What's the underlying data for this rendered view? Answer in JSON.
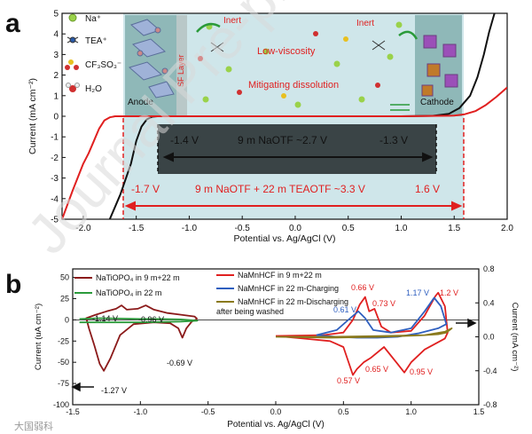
{
  "panel_labels": {
    "a": "a",
    "b": "b"
  },
  "watermark": "Journal Pre-proof",
  "source_tag": "大国弱科",
  "colors": {
    "black": "#111111",
    "red": "#e02020",
    "blue": "#2f5fbf",
    "green": "#2a9a3a",
    "olive": "#8a7a1e",
    "darkred": "#8b1a1a",
    "window_light": "#cfe6ea",
    "window_dark": "#3a4446",
    "electrode": "#8fb8b8"
  },
  "panel_a": {
    "legend": [
      "Na⁺",
      "TEA⁺",
      "CF₃SO₃⁻",
      "H₂O"
    ],
    "labels": {
      "anode": "Anode",
      "sf_layer": "SF Layer",
      "inert_left": "Inert",
      "inert_right": "Inert",
      "low_viscosity": "Low-viscosity",
      "mitigating": "Mitigating dissolution",
      "cathode": "Cathode",
      "black_left": "-1.4 V",
      "black_mid": "9 m NaOTF ~2.7 V",
      "black_right": "-1.3 V",
      "red_left": "-1.7 V",
      "red_mid": "9 m NaOTF + 22 m TEAOTF  ~3.3 V",
      "red_right": "1.6 V"
    }
  },
  "panel_b": {
    "legend_left": [
      "NaTiOPO₄ in 9 m+22 m",
      "NaTiOPO₄ in 22 m"
    ],
    "legend_right": [
      "NaMnHCF in 9 m+22 m",
      "NaMnHCF in 22 m-Charging",
      "NaMnHCF in 22 m-Discharging",
      "after being washed"
    ],
    "annotations_dark": [
      "-1.14 V",
      "-0.96 V",
      "-0.69 V",
      "-1.27 V"
    ],
    "annotations_red": [
      "0.66 V",
      "0.73 V",
      "1.2 V",
      "0.57 V",
      "0.65 V",
      "0.95 V"
    ],
    "annotations_blue": [
      "0.61 V",
      "1.17 V"
    ]
  },
  "chart_data": [
    {
      "type": "line",
      "panel": "a",
      "xlabel": "Potential vs. Ag/AgCl (V)",
      "ylabel": "Current (mA cm⁻²)",
      "xlim": [
        -2.2,
        2.0
      ],
      "ylim": [
        -5,
        5
      ],
      "xticks": [
        -2.0,
        -1.5,
        -1.0,
        -0.5,
        0.0,
        0.5,
        1.0,
        1.5,
        2.0
      ],
      "yticks": [
        -5,
        -4,
        -3,
        -2,
        -1,
        0,
        1,
        2,
        3,
        4,
        5
      ],
      "series": [
        {
          "color": "black",
          "x": [
            -1.75,
            -1.65,
            -1.55,
            -1.5,
            -1.45,
            -1.4,
            -1.35,
            -1.3,
            -1.2,
            -1.0,
            0.0,
            1.0,
            1.3,
            1.45,
            1.55,
            1.65,
            1.72,
            1.78,
            1.83,
            1.88
          ],
          "y": [
            -5.0,
            -3.8,
            -2.3,
            -1.2,
            -0.5,
            -0.15,
            -0.02,
            0.0,
            0.0,
            0.0,
            0.0,
            0.0,
            0.02,
            0.12,
            0.4,
            1.0,
            1.9,
            3.0,
            4.1,
            5.0
          ]
        },
        {
          "color": "red",
          "x": [
            -2.2,
            -2.1,
            -2.0,
            -1.95,
            -1.9,
            -1.85,
            -1.8,
            -1.75,
            -1.7,
            -1.65,
            -1.6,
            -1.5,
            -1.0,
            0.0,
            1.0,
            1.5,
            1.6,
            1.7,
            1.8,
            1.9,
            2.0
          ],
          "y": [
            -5.0,
            -3.6,
            -2.3,
            -1.8,
            -1.2,
            -0.6,
            -0.2,
            -0.05,
            0.0,
            0.0,
            0.0,
            0.0,
            0.0,
            0.0,
            0.0,
            0.03,
            0.1,
            0.25,
            0.55,
            0.95,
            1.4
          ]
        }
      ]
    },
    {
      "type": "line",
      "panel": "b",
      "xlabel": "Potential vs. Ag/AgCl (V)",
      "ylabel_left": "Current (uA cm⁻²)",
      "ylabel_right": "Current (mA cm⁻²)",
      "xlim": [
        -1.5,
        1.5
      ],
      "ylim_left": [
        -100,
        60
      ],
      "ylim_right": [
        -0.8,
        0.8
      ],
      "xticks": [
        -1.5,
        -1.0,
        -0.5,
        0.0,
        0.5,
        1.0,
        1.5
      ],
      "yticks_left": [
        -100,
        -75,
        -50,
        -25,
        0,
        25,
        50
      ],
      "yticks_right": [
        -0.8,
        -0.4,
        0.0,
        0.4,
        0.8
      ],
      "series": [
        {
          "color": "darkred",
          "axis": "left",
          "x": [
            -0.58,
            -0.62,
            -0.66,
            -0.69,
            -0.72,
            -0.78,
            -0.9,
            -1.05,
            -1.15,
            -1.22,
            -1.27,
            -1.3,
            -1.34,
            -1.38,
            -1.4,
            -1.33,
            -1.25,
            -1.18,
            -1.14,
            -1.1,
            -1.02,
            -0.96,
            -0.9,
            -0.8,
            -0.7,
            -0.6,
            -0.58
          ],
          "y": [
            1,
            -2,
            -10,
            -21,
            -10,
            -4,
            -3,
            -5,
            -18,
            -45,
            -60,
            -52,
            -30,
            -10,
            2,
            6,
            10,
            13,
            17,
            12,
            13,
            17,
            12,
            8,
            6,
            4,
            1
          ]
        },
        {
          "color": "green",
          "axis": "left",
          "x": [
            -1.45,
            -1.3,
            -1.15,
            -1.0,
            -0.85,
            -0.7,
            -0.58,
            -0.7,
            -0.85,
            -1.0,
            -1.15,
            -1.3,
            -1.45
          ],
          "y": [
            -3,
            -3,
            -3,
            -3,
            -2.5,
            -2,
            -1,
            0.5,
            1,
            1,
            1.5,
            2,
            1
          ]
        },
        {
          "color": "red",
          "axis": "right",
          "x": [
            0.0,
            0.35,
            0.5,
            0.57,
            0.62,
            0.66,
            0.69,
            0.73,
            0.78,
            0.85,
            1.0,
            1.1,
            1.18,
            1.2,
            1.25,
            1.27,
            1.25,
            1.1,
            1.0,
            0.95,
            0.9,
            0.8,
            0.7,
            0.65,
            0.6,
            0.57,
            0.5,
            0.4,
            0.2,
            0.0
          ],
          "y": [
            0.01,
            0.02,
            0.05,
            0.2,
            0.38,
            0.47,
            0.3,
            0.33,
            0.12,
            0.05,
            0.07,
            0.25,
            0.48,
            0.52,
            0.36,
            0.05,
            -0.02,
            -0.15,
            -0.3,
            -0.42,
            -0.32,
            -0.12,
            -0.25,
            -0.3,
            -0.38,
            -0.45,
            -0.12,
            -0.05,
            -0.02,
            0.01
          ]
        },
        {
          "color": "blue",
          "axis": "right",
          "x": [
            0.3,
            0.45,
            0.55,
            0.61,
            0.66,
            0.72,
            0.85,
            1.0,
            1.1,
            1.17,
            1.22,
            1.26,
            1.2,
            1.05,
            0.9,
            0.75,
            0.6,
            0.45,
            0.3
          ],
          "y": [
            0.02,
            0.08,
            0.22,
            0.3,
            0.22,
            0.08,
            0.05,
            0.1,
            0.3,
            0.46,
            0.36,
            0.15,
            0.1,
            0.04,
            0.0,
            -0.01,
            -0.01,
            0.0,
            0.02
          ]
        },
        {
          "color": "olive",
          "axis": "right",
          "x": [
            0.0,
            0.4,
            0.8,
            1.1,
            1.2,
            1.26,
            1.3,
            1.25,
            1.1,
            0.8,
            0.4,
            0.0
          ],
          "y": [
            0.0,
            0.0,
            0.01,
            0.02,
            0.03,
            0.05,
            0.1,
            0.06,
            0.02,
            0.0,
            -0.01,
            0.0
          ]
        }
      ]
    }
  ]
}
